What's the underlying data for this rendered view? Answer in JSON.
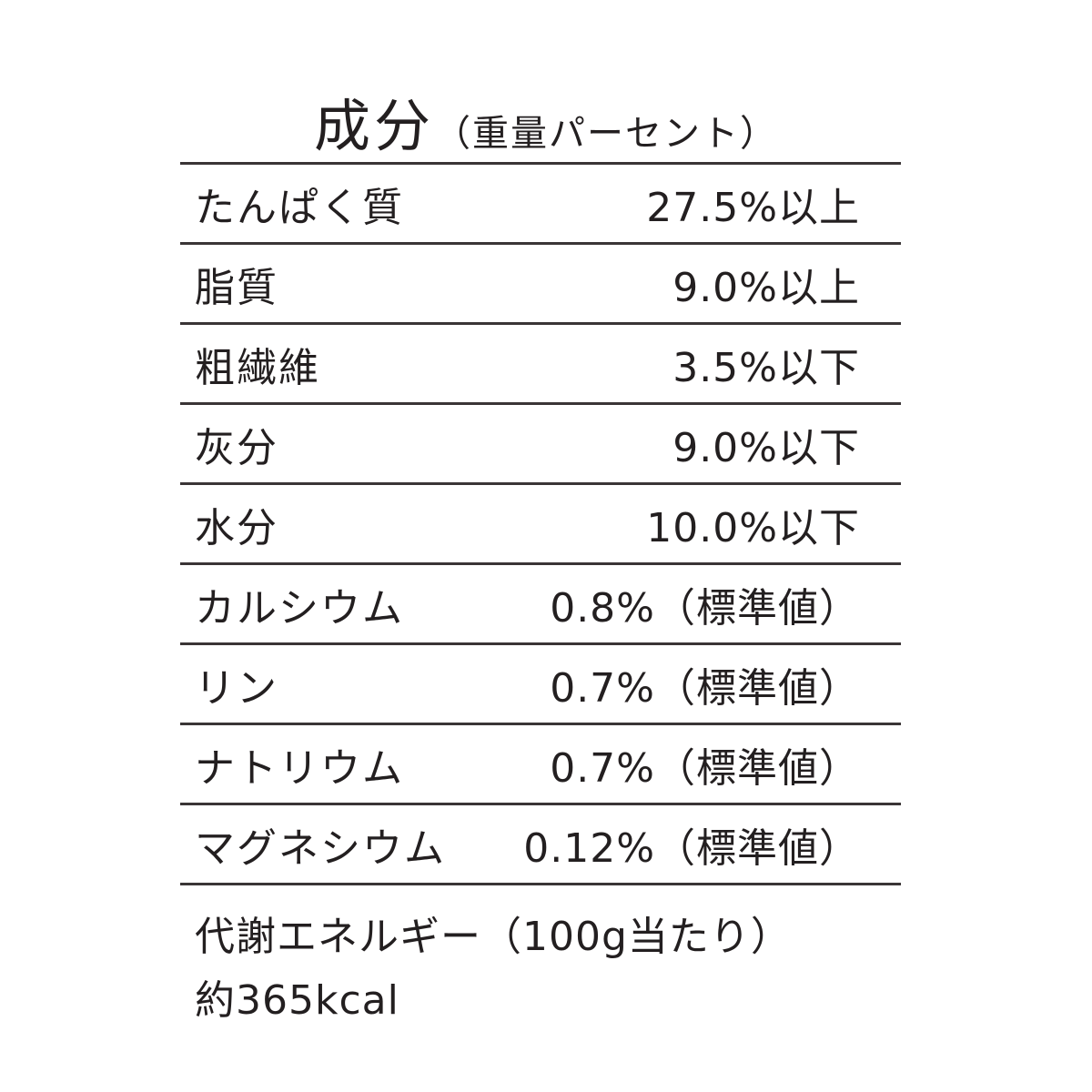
{
  "title": {
    "main": "成分",
    "sub": "（重量パーセント）"
  },
  "rows": [
    {
      "name": "たんぱく質",
      "value": "27.5%以上"
    },
    {
      "name": "脂質",
      "value": "9.0%以上"
    },
    {
      "name": "粗繊維",
      "value": "3.5%以下"
    },
    {
      "name": "灰分",
      "value": "9.0%以下"
    },
    {
      "name": "水分",
      "value": "10.0%以下"
    },
    {
      "name": "カルシウム",
      "value": "0.8%（標準値）"
    },
    {
      "name": "リン",
      "value": "0.7%（標準値）"
    },
    {
      "name": "ナトリウム",
      "value": "0.7%（標準値）"
    },
    {
      "name": "マグネシウム",
      "value": "0.12%（標準値）"
    }
  ],
  "footer": {
    "line1": "代謝エネルギー（100g当たり）",
    "line2": "約365kcal"
  }
}
